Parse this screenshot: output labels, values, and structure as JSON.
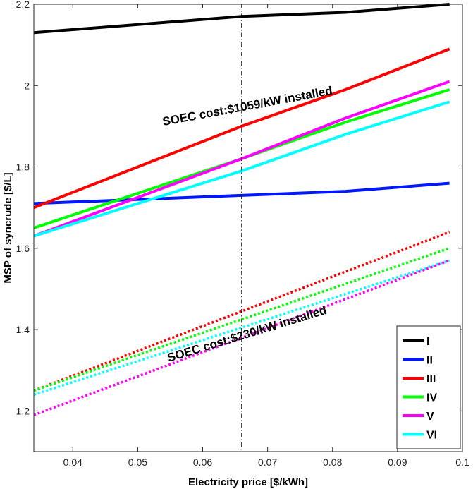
{
  "chart_data": {
    "type": "line",
    "title": "",
    "xlabel": "Electricity price [$/kWh]",
    "ylabel": "MSP of syncrude [$/L]",
    "xlim": [
      0.034,
      0.1
    ],
    "ylim": [
      1.1,
      2.2
    ],
    "xticks": [
      0.04,
      0.05,
      0.06,
      0.07,
      0.08,
      0.09,
      0.1
    ],
    "xtick_labels": [
      "0.04",
      "0.05",
      "0.06",
      "0.07",
      "0.08",
      "0.09",
      "0.1"
    ],
    "yticks": [
      1.2,
      1.4,
      1.6,
      1.8,
      2.0,
      2.2
    ],
    "ytick_labels": [
      "1.2",
      "1.4",
      "1.6",
      "1.8",
      "2",
      "2.2"
    ],
    "grid": false,
    "legend_position": "bottom-right",
    "reference_line": {
      "x": 0.066,
      "style": "dash-dot"
    },
    "annotations": [
      {
        "text": "SOEC cost:$1059/kW installed",
        "x": 0.067,
        "y": 1.94,
        "angle_deg": -10.5
      },
      {
        "text": "SOEC cost:$230/kW installed",
        "x": 0.067,
        "y": 1.38,
        "angle_deg": -17
      }
    ],
    "series": [
      {
        "name": "I",
        "color": "#000000",
        "style": "solid",
        "x": [
          0.034,
          0.066,
          0.082,
          0.098
        ],
        "y": [
          2.13,
          2.17,
          2.18,
          2.2
        ]
      },
      {
        "name": "II",
        "color": "#0018ff",
        "style": "solid",
        "x": [
          0.034,
          0.066,
          0.082,
          0.098
        ],
        "y": [
          1.71,
          1.73,
          1.74,
          1.76
        ]
      },
      {
        "name": "III",
        "color": "#ff0000",
        "style": "solid",
        "x": [
          0.034,
          0.066,
          0.082,
          0.098
        ],
        "y": [
          1.7,
          1.9,
          1.99,
          2.09
        ]
      },
      {
        "name": "IV",
        "color": "#00ff00",
        "style": "solid",
        "x": [
          0.034,
          0.066,
          0.082,
          0.098
        ],
        "y": [
          1.65,
          1.82,
          1.91,
          1.99
        ]
      },
      {
        "name": "V",
        "color": "#ff00ff",
        "style": "solid",
        "x": [
          0.034,
          0.066,
          0.082,
          0.098
        ],
        "y": [
          1.63,
          1.82,
          1.92,
          2.01
        ]
      },
      {
        "name": "VI",
        "color": "#00ffff",
        "style": "solid",
        "x": [
          0.034,
          0.066,
          0.082,
          0.098
        ],
        "y": [
          1.63,
          1.79,
          1.88,
          1.96
        ]
      },
      {
        "name": "III",
        "color": "#ff0000",
        "style": "dotted",
        "x": [
          0.034,
          0.098
        ],
        "y": [
          1.25,
          1.64
        ]
      },
      {
        "name": "IV",
        "color": "#00ff00",
        "style": "dotted",
        "x": [
          0.034,
          0.098
        ],
        "y": [
          1.25,
          1.6
        ]
      },
      {
        "name": "VI",
        "color": "#00ffff",
        "style": "dotted",
        "x": [
          0.034,
          0.098
        ],
        "y": [
          1.24,
          1.57
        ]
      },
      {
        "name": "V",
        "color": "#ff00ff",
        "style": "dotted",
        "x": [
          0.034,
          0.098
        ],
        "y": [
          1.19,
          1.57
        ]
      }
    ],
    "legend": [
      {
        "label": "I",
        "color": "#000000"
      },
      {
        "label": "II",
        "color": "#0018ff"
      },
      {
        "label": "III",
        "color": "#ff0000"
      },
      {
        "label": "IV",
        "color": "#00ff00"
      },
      {
        "label": "V",
        "color": "#ff00ff"
      },
      {
        "label": "VI",
        "color": "#00ffff"
      }
    ]
  }
}
